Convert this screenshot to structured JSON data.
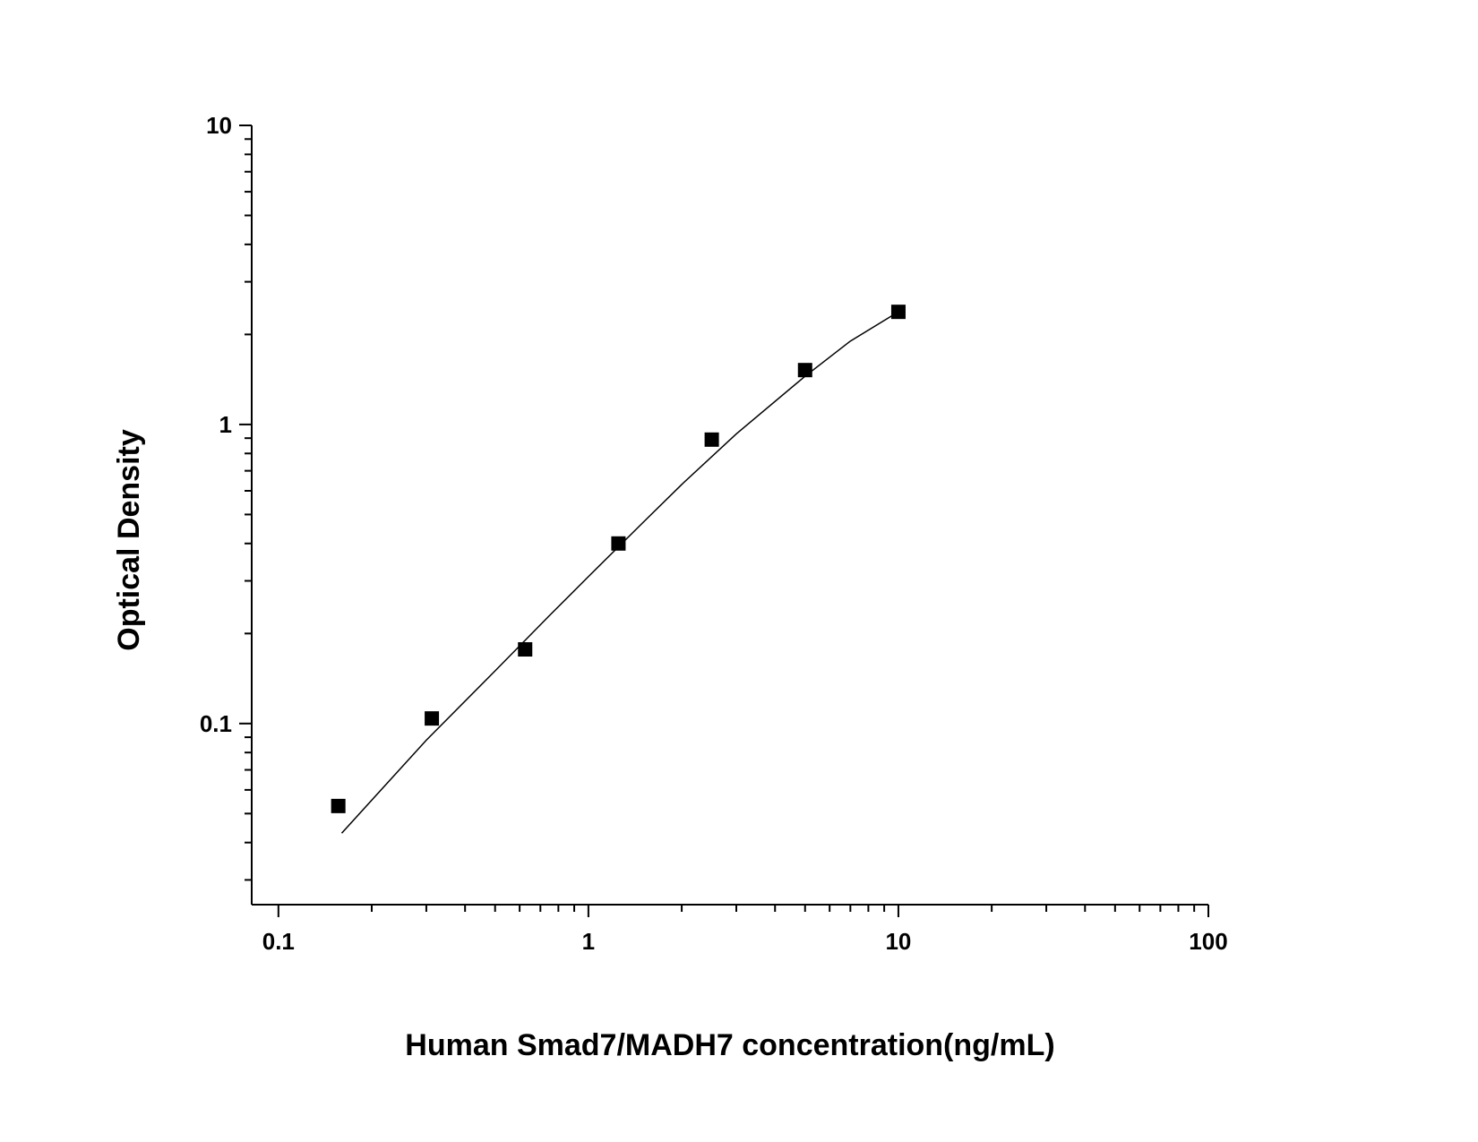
{
  "chart_data": {
    "type": "scatter",
    "xlabel": "Human Smad7/MADH7 concentration(ng/mL)",
    "ylabel": "Optical Density",
    "xscale": "log",
    "yscale": "log",
    "xlim": [
      0.082,
      100
    ],
    "ylim": [
      0.0248,
      10
    ],
    "xticks": [
      0.1,
      1,
      10,
      100
    ],
    "yticks": [
      0.1,
      1,
      10
    ],
    "xminorticks": [
      0.2,
      0.3,
      0.4,
      0.5,
      0.6,
      0.7,
      0.8,
      0.9,
      2,
      3,
      4,
      5,
      6,
      7,
      8,
      9,
      20,
      30,
      40,
      50,
      60,
      70,
      80,
      90
    ],
    "yminorticks": [
      0.03,
      0.04,
      0.05,
      0.06,
      0.07,
      0.08,
      0.09,
      0.2,
      0.3,
      0.4,
      0.5,
      0.6,
      0.7,
      0.8,
      0.9,
      2,
      3,
      4,
      5,
      6,
      7,
      8,
      9
    ],
    "series": [
      {
        "mode": "markers",
        "color": "#000000",
        "x": [
          0.156,
          0.3125,
          0.625,
          1.25,
          2.5,
          5,
          10
        ],
        "values": [
          0.053,
          0.104,
          0.177,
          0.4,
          0.89,
          1.52,
          2.38
        ]
      },
      {
        "mode": "line",
        "color": "#000000",
        "x": [
          0.16,
          0.3,
          0.5,
          0.75,
          1,
          1.5,
          2,
          3,
          5,
          7,
          10
        ],
        "values": [
          0.043,
          0.088,
          0.15,
          0.23,
          0.31,
          0.47,
          0.63,
          0.93,
          1.45,
          1.9,
          2.38
        ]
      }
    ]
  }
}
